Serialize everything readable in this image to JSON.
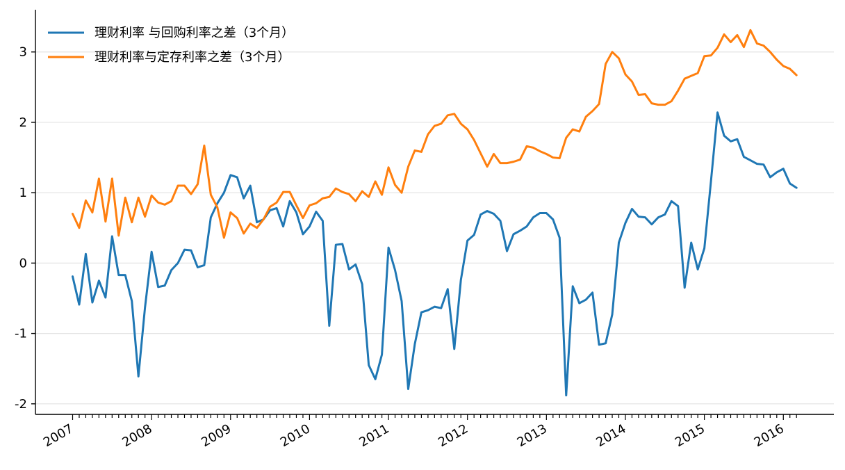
{
  "chart_data": {
    "type": "line",
    "title": "",
    "xlabel": "",
    "ylabel": "",
    "ylim": [
      -2.15,
      3.6
    ],
    "y_ticks": [
      -2,
      -1,
      0,
      1,
      2,
      3
    ],
    "y_tick_labels": [
      "-2",
      "-1",
      "0",
      "1",
      "2",
      "3"
    ],
    "x_tick_labels": [
      "2007",
      "2008",
      "2009",
      "2010",
      "2011",
      "2012",
      "2013",
      "2014",
      "2015",
      "2016"
    ],
    "x_start_year": 2007,
    "x_label_rotation_deg": -30,
    "grid": "horizontal",
    "legend": "top-left",
    "series": [
      {
        "name": "理财利率 与回购利率之差（3个月）",
        "color": "#1f77b4",
        "values": [
          -0.19,
          -0.59,
          0.13,
          -0.56,
          -0.25,
          -0.49,
          0.38,
          -0.17,
          -0.17,
          -0.54,
          -1.61,
          -0.63,
          0.16,
          -0.34,
          -0.32,
          -0.1,
          0.0,
          0.19,
          0.18,
          -0.06,
          -0.03,
          0.65,
          0.85,
          1.0,
          1.25,
          1.22,
          0.92,
          1.1,
          0.58,
          0.62,
          0.75,
          0.78,
          0.52,
          0.88,
          0.72,
          0.41,
          0.52,
          0.73,
          0.6,
          -0.89,
          0.26,
          0.27,
          -0.09,
          -0.02,
          -0.3,
          -1.45,
          -1.65,
          -1.3,
          0.22,
          -0.1,
          -0.54,
          -1.79,
          -1.15,
          -0.7,
          -0.67,
          -0.62,
          -0.64,
          -0.37,
          -1.22,
          -0.24,
          0.32,
          0.4,
          0.69,
          0.74,
          0.7,
          0.6,
          0.17,
          0.41,
          0.46,
          0.52,
          0.65,
          0.71,
          0.71,
          0.62,
          0.36,
          -1.88,
          -0.33,
          -0.57,
          -0.52,
          -0.42,
          -1.16,
          -1.14,
          -0.73,
          0.29,
          0.57,
          0.77,
          0.66,
          0.65,
          0.55,
          0.65,
          0.69,
          0.88,
          0.81,
          -0.35,
          0.29,
          -0.09,
          0.21,
          1.16,
          2.14,
          1.81,
          1.73,
          1.76,
          1.51,
          1.46,
          1.41,
          1.4,
          1.22,
          1.29,
          1.34,
          1.13,
          1.07
        ]
      },
      {
        "name": "理财利率与定存利率之差（3个月）",
        "color": "#ff7f0e",
        "values": [
          0.7,
          0.5,
          0.89,
          0.72,
          1.2,
          0.59,
          1.2,
          0.39,
          0.93,
          0.58,
          0.93,
          0.66,
          0.96,
          0.86,
          0.83,
          0.88,
          1.1,
          1.1,
          0.98,
          1.12,
          1.67,
          0.97,
          0.79,
          0.36,
          0.72,
          0.64,
          0.42,
          0.56,
          0.5,
          0.62,
          0.8,
          0.86,
          1.01,
          1.01,
          0.82,
          0.64,
          0.82,
          0.85,
          0.92,
          0.94,
          1.06,
          1.01,
          0.98,
          0.88,
          1.02,
          0.94,
          1.16,
          0.97,
          1.36,
          1.11,
          1.0,
          1.37,
          1.6,
          1.58,
          1.83,
          1.95,
          1.98,
          2.1,
          2.12,
          1.98,
          1.9,
          1.75,
          1.56,
          1.37,
          1.55,
          1.42,
          1.42,
          1.44,
          1.47,
          1.66,
          1.64,
          1.59,
          1.55,
          1.5,
          1.49,
          1.78,
          1.9,
          1.87,
          2.08,
          2.16,
          2.26,
          2.83,
          3.0,
          2.91,
          2.68,
          2.58,
          2.39,
          2.4,
          2.27,
          2.25,
          2.25,
          2.3,
          2.45,
          2.62,
          2.66,
          2.7,
          2.94,
          2.95,
          3.06,
          3.25,
          3.14,
          3.24,
          3.07,
          3.31,
          3.12,
          3.09,
          3.0,
          2.89,
          2.8,
          2.76,
          2.67
        ]
      }
    ]
  }
}
